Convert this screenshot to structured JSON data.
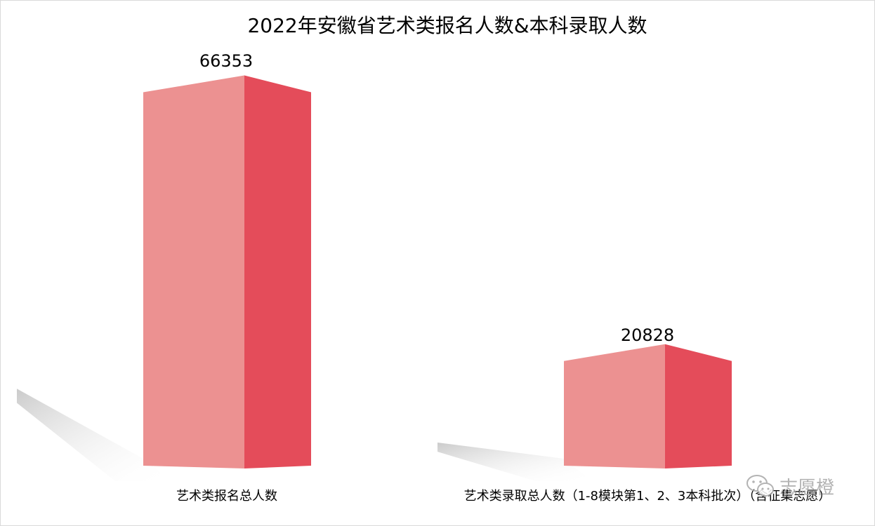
{
  "chart_data": {
    "type": "bar",
    "title": "2022年安徽省艺术类报名人数&本科录取人数",
    "categories": [
      "艺术类报名总人数",
      "艺术类录取总人数（1-8模块第1、2、3本科批次）（含征集志愿）"
    ],
    "values": [
      66353,
      20828
    ],
    "data_labels": [
      "66353",
      "20828"
    ],
    "ylim": [
      0,
      72000
    ],
    "grid": false,
    "legend": "none",
    "style": "3d-column",
    "colors": {
      "front": "#ec9191",
      "side": "#e44c5a",
      "top": "#ef7d87",
      "shadow": "#d4d4d4"
    }
  },
  "watermark": {
    "text": "志愿橙",
    "icon": "wechat-icon"
  }
}
